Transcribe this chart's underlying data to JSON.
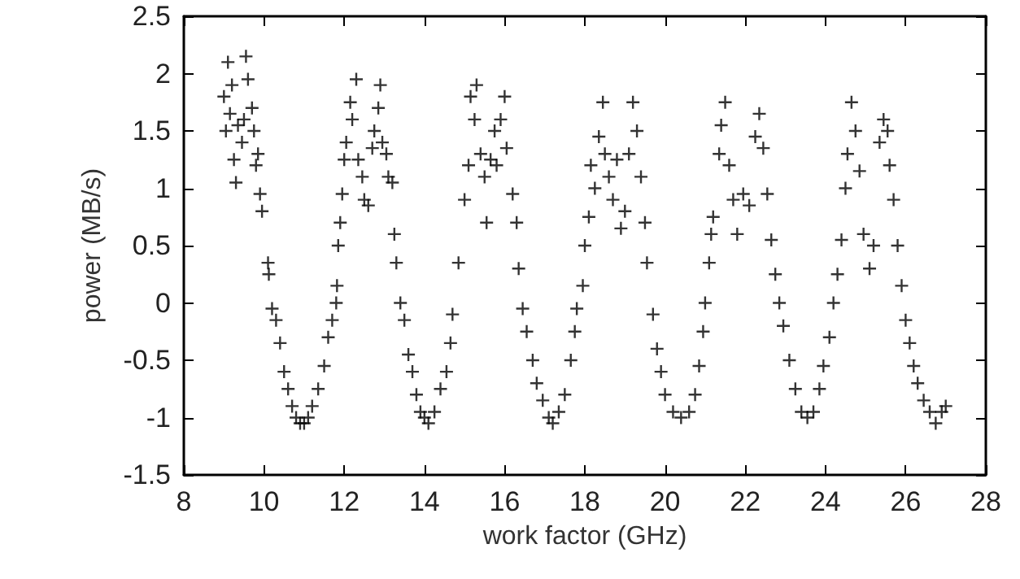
{
  "chart_data": {
    "type": "scatter",
    "xlabel": "work factor (GHz)",
    "ylabel": "power (MB/s)",
    "xlim": [
      8,
      28
    ],
    "xticks": [
      8,
      10,
      12,
      14,
      16,
      18,
      20,
      22,
      24,
      26,
      28
    ],
    "ylim": [
      -1.5,
      2.5
    ],
    "yticks": [
      -1.5,
      -1,
      -0.5,
      0,
      0.5,
      1,
      1.5,
      2,
      2.5
    ],
    "marker": "cross",
    "series": [
      {
        "color": "#000000",
        "x": [
          9.0,
          9.05,
          9.1,
          9.15,
          9.2,
          9.25,
          9.3,
          9.35,
          9.45,
          9.5,
          9.55,
          9.6,
          9.7,
          9.75,
          9.8,
          9.85,
          9.9,
          9.95,
          10.1,
          10.12,
          10.2,
          10.3,
          10.4,
          10.5,
          10.6,
          10.7,
          10.8,
          10.9,
          11.0,
          11.1,
          11.2,
          11.35,
          11.5,
          11.6,
          11.7,
          11.8,
          11.82,
          11.85,
          11.9,
          11.95,
          12.0,
          12.05,
          12.15,
          12.2,
          12.3,
          12.35,
          12.45,
          12.5,
          12.6,
          12.7,
          12.75,
          12.85,
          12.9,
          12.95,
          13.05,
          13.1,
          13.2,
          13.25,
          13.3,
          13.4,
          13.5,
          13.6,
          13.7,
          13.8,
          13.9,
          14.0,
          14.1,
          14.25,
          14.4,
          14.55,
          14.65,
          14.7,
          14.85,
          15.0,
          15.1,
          15.15,
          15.25,
          15.3,
          15.4,
          15.5,
          15.55,
          15.65,
          15.75,
          15.8,
          15.9,
          16.0,
          16.05,
          16.2,
          16.3,
          16.35,
          16.45,
          16.55,
          16.7,
          16.8,
          16.95,
          17.1,
          17.2,
          17.35,
          17.5,
          17.65,
          17.75,
          17.8,
          17.95,
          18.0,
          18.1,
          18.15,
          18.25,
          18.35,
          18.45,
          18.5,
          18.6,
          18.7,
          18.8,
          18.9,
          19.0,
          19.1,
          19.2,
          19.3,
          19.4,
          19.5,
          19.55,
          19.7,
          19.8,
          19.9,
          20.0,
          20.2,
          20.4,
          20.6,
          20.75,
          20.85,
          20.95,
          21.0,
          21.1,
          21.15,
          21.2,
          21.35,
          21.4,
          21.5,
          21.6,
          21.7,
          21.8,
          21.95,
          22.1,
          22.25,
          22.35,
          22.45,
          22.55,
          22.65,
          22.75,
          22.85,
          22.95,
          23.1,
          23.25,
          23.4,
          23.55,
          23.7,
          23.85,
          23.95,
          24.1,
          24.2,
          24.3,
          24.4,
          24.5,
          24.55,
          24.65,
          24.75,
          24.85,
          24.95,
          25.1,
          25.2,
          25.35,
          25.45,
          25.55,
          25.6,
          25.7,
          25.8,
          25.9,
          26.0,
          26.1,
          26.2,
          26.3,
          26.45,
          26.6,
          26.75,
          26.9,
          27.0
        ],
        "values": [
          1.8,
          1.5,
          2.1,
          1.65,
          1.9,
          1.25,
          1.05,
          1.55,
          1.4,
          1.6,
          2.15,
          1.95,
          1.7,
          1.5,
          1.2,
          1.3,
          0.95,
          0.8,
          0.35,
          0.25,
          -0.05,
          -0.15,
          -0.35,
          -0.6,
          -0.75,
          -0.9,
          -1.0,
          -1.05,
          -1.05,
          -1.0,
          -0.9,
          -0.75,
          -0.55,
          -0.3,
          -0.15,
          0.0,
          0.15,
          0.5,
          0.7,
          0.95,
          1.25,
          1.4,
          1.75,
          1.6,
          1.95,
          1.25,
          1.1,
          0.9,
          0.85,
          1.35,
          1.5,
          1.7,
          1.9,
          1.4,
          1.3,
          1.1,
          1.05,
          0.6,
          0.35,
          0.0,
          -0.15,
          -0.45,
          -0.6,
          -0.8,
          -0.95,
          -1.0,
          -1.05,
          -0.95,
          -0.75,
          -0.6,
          -0.35,
          -0.1,
          0.35,
          0.9,
          1.2,
          1.8,
          1.6,
          1.9,
          1.3,
          1.1,
          0.7,
          1.25,
          1.5,
          1.2,
          1.6,
          1.8,
          1.35,
          0.95,
          0.7,
          0.3,
          -0.05,
          -0.25,
          -0.5,
          -0.7,
          -0.85,
          -1.0,
          -1.05,
          -0.95,
          -0.8,
          -0.5,
          -0.25,
          -0.05,
          0.15,
          0.5,
          0.75,
          1.2,
          1.0,
          1.45,
          1.75,
          1.3,
          1.1,
          0.9,
          1.25,
          0.65,
          0.8,
          1.3,
          1.75,
          1.5,
          1.1,
          0.7,
          0.35,
          -0.1,
          -0.4,
          -0.6,
          -0.8,
          -0.95,
          -1.0,
          -0.95,
          -0.8,
          -0.55,
          -0.25,
          0.0,
          0.35,
          0.6,
          0.75,
          1.3,
          1.55,
          1.75,
          1.2,
          0.9,
          0.6,
          0.95,
          0.85,
          1.45,
          1.65,
          1.35,
          0.95,
          0.55,
          0.25,
          0.0,
          -0.2,
          -0.5,
          -0.75,
          -0.95,
          -1.0,
          -0.95,
          -0.75,
          -0.55,
          -0.3,
          0.0,
          0.25,
          0.55,
          1.0,
          1.3,
          1.75,
          1.5,
          1.15,
          0.6,
          0.3,
          0.5,
          1.4,
          1.6,
          1.5,
          1.2,
          0.9,
          0.5,
          0.15,
          -0.15,
          -0.35,
          -0.55,
          -0.7,
          -0.85,
          -0.95,
          -1.05,
          -0.95,
          -0.9
        ]
      }
    ]
  }
}
